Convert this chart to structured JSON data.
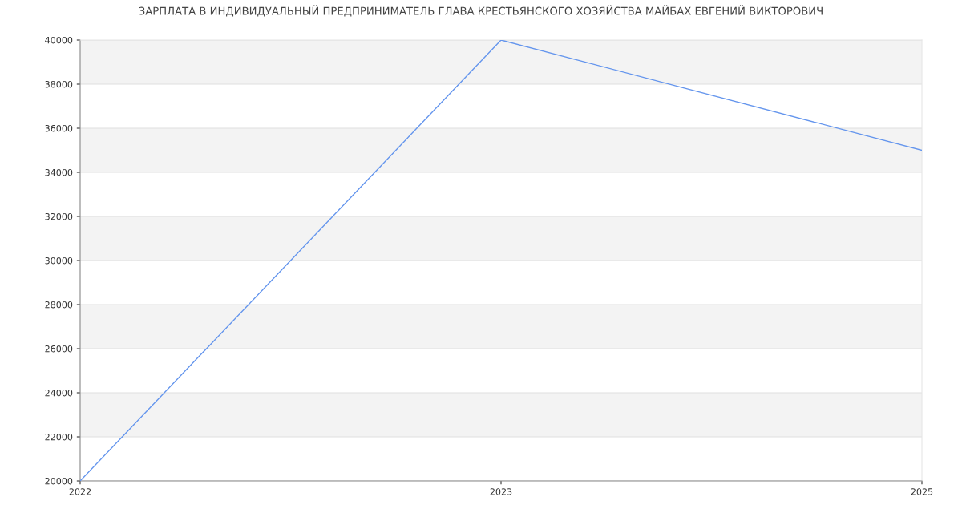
{
  "chart_data": {
    "type": "line",
    "title": "ЗАРПЛАТА В ИНДИВИДУАЛЬНЫЙ ПРЕДПРИНИМАТЕЛЬ ГЛАВА КРЕСТЬЯНСКОГО ХОЗЯЙСТВА МАЙБАХ ЕВГЕНИЙ ВИКТОРОВИЧ",
    "categories": [
      "2022",
      "2023",
      "2025"
    ],
    "series": [
      {
        "color": "#6495ed",
        "values": [
          20000,
          40000,
          35000
        ]
      }
    ],
    "ylim": [
      20000,
      40000
    ],
    "yticks": [
      20000,
      22000,
      24000,
      26000,
      28000,
      30000,
      32000,
      34000,
      36000,
      38000,
      40000
    ],
    "grid": "y",
    "legend": false,
    "marker": "none",
    "line_style": "solid"
  }
}
